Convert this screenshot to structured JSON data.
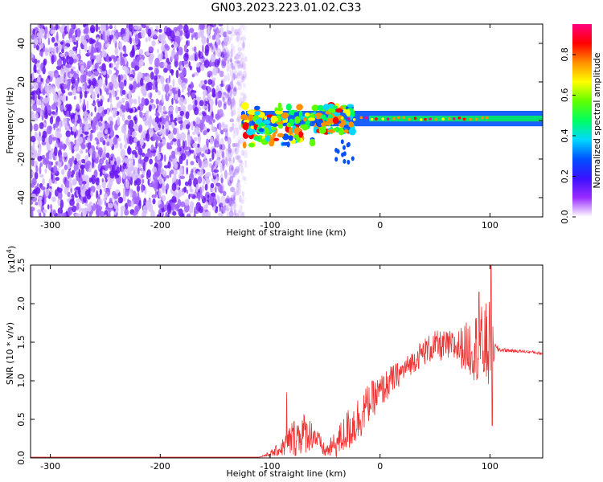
{
  "title": "GN03.2023.223.01.02.C33",
  "chart_data": [
    {
      "type": "heatmap",
      "name": "spectrogram",
      "xlabel": "Height of straight line (km)",
      "ylabel": "Frequency (Hz)",
      "xlim": [
        -318,
        148
      ],
      "ylim": [
        -50,
        50
      ],
      "xticks": [
        -300,
        -200,
        -100,
        0,
        100
      ],
      "yticks": [
        -40,
        -20,
        0,
        20,
        40
      ],
      "colorbar": {
        "label": "Normalized spectral amplitude",
        "range": [
          0.0,
          0.95
        ],
        "ticks": [
          0.0,
          0.2,
          0.4,
          0.6,
          0.8
        ],
        "colormap": [
          "#ffffff",
          "#9a2cff",
          "#3a10ff",
          "#0050ff",
          "#00d8ff",
          "#00ff60",
          "#60ff00",
          "#ffff00",
          "#ff9000",
          "#ff0000",
          "#ff007f"
        ]
      },
      "regions": [
        {
          "label": "noise",
          "x_range": [
            -318,
            -122
          ],
          "freq_range": [
            -50,
            50
          ],
          "amplitude": 0.1
        },
        {
          "label": "band",
          "x_range": [
            -122,
            148
          ],
          "freq_center": 1,
          "freq_halfwidth": 4,
          "amplitude": 0.5
        },
        {
          "label": "peaks",
          "x_range": [
            -40,
            100
          ],
          "freq": 1,
          "amplitude": 0.9
        }
      ]
    },
    {
      "type": "line",
      "name": "snr",
      "xlabel": "Height of straight line (km)",
      "ylabel": "SNR (10 * v/v)",
      "yscale_label": "(x10",
      "yscale_exp": "4",
      "yscale_close": ")",
      "xlim": [
        -318,
        148
      ],
      "ylim": [
        0,
        2.5
      ],
      "xticks": [
        -300,
        -200,
        -100,
        0,
        100
      ],
      "yticks": [
        0.0,
        0.5,
        1.0,
        1.5,
        2.0,
        2.5
      ],
      "color": "#ee3333",
      "envelope": {
        "x": [
          -318,
          -110,
          -100,
          -90,
          -80,
          -70,
          -60,
          -50,
          -40,
          -30,
          -20,
          -10,
          0,
          10,
          20,
          30,
          40,
          50,
          60,
          70,
          80,
          90,
          100,
          105,
          110,
          120,
          130,
          140,
          148
        ],
        "y": [
          0.01,
          0.01,
          0.05,
          0.12,
          0.25,
          0.32,
          0.3,
          0.08,
          0.18,
          0.35,
          0.5,
          0.72,
          0.85,
          1.0,
          1.12,
          1.25,
          1.38,
          1.45,
          1.45,
          1.44,
          1.43,
          1.45,
          1.45,
          1.42,
          1.4,
          1.39,
          1.38,
          1.37,
          1.35
        ],
        "amp": [
          0.0,
          0.0,
          0.04,
          0.1,
          0.25,
          0.28,
          0.18,
          0.08,
          0.18,
          0.28,
          0.32,
          0.25,
          0.22,
          0.2,
          0.15,
          0.15,
          0.18,
          0.2,
          0.2,
          0.22,
          0.35,
          0.5,
          0.6,
          0.06,
          0.03,
          0.02,
          0.02,
          0.02,
          0.02
        ]
      },
      "spikes": [
        {
          "x": -85,
          "y": 0.85
        },
        {
          "x": 101,
          "y": 2.5
        },
        {
          "x": 102,
          "y": 0.42
        },
        {
          "x": 90,
          "y": 2.15
        }
      ]
    }
  ]
}
